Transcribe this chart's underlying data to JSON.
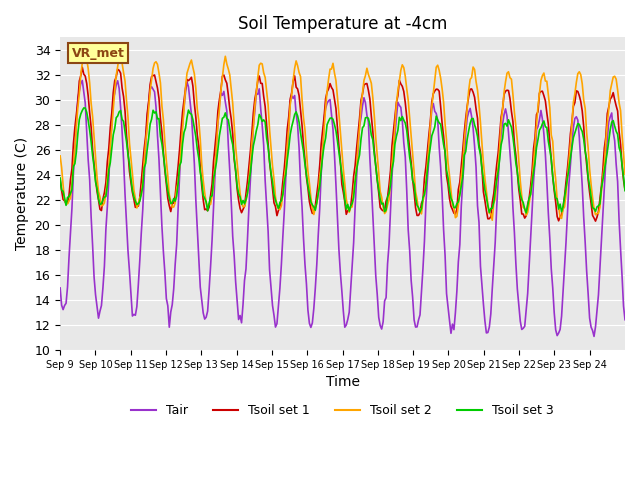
{
  "title": "Soil Temperature at -4cm",
  "xlabel": "Time",
  "ylabel": "Temperature (C)",
  "ylim": [
    10,
    35
  ],
  "yticks": [
    10,
    12,
    14,
    16,
    18,
    20,
    22,
    24,
    26,
    28,
    30,
    32,
    34
  ],
  "xtick_labels": [
    "Sep 9",
    "Sep 10",
    "Sep 11",
    "Sep 12",
    "Sep 13",
    "Sep 14",
    "Sep 15",
    "Sep 16",
    "Sep 17",
    "Sep 18",
    "Sep 19",
    "Sep 20",
    "Sep 21",
    "Sep 22",
    "Sep 23",
    "Sep 24"
  ],
  "n_days": 16,
  "color_tair": "#9932CC",
  "color_tsoil1": "#CC0000",
  "color_tsoil2": "#FFA500",
  "color_tsoil3": "#00CC00",
  "bg_color": "#E8E8E8",
  "annotation_text": "VR_met",
  "annotation_bg": "#FFFF99",
  "annotation_border": "#8B4513",
  "legend_labels": [
    "Tair",
    "Tsoil set 1",
    "Tsoil set 2",
    "Tsoil set 3"
  ]
}
